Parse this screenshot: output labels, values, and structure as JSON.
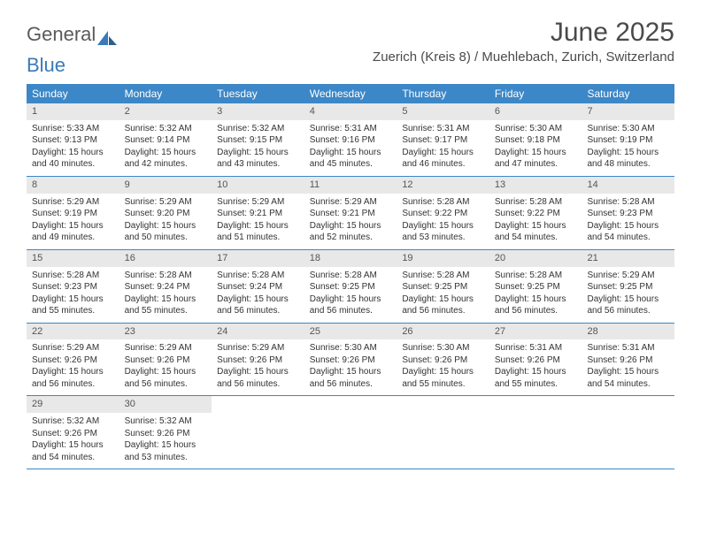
{
  "logo": {
    "text_general": "General",
    "text_blue": "Blue"
  },
  "title": "June 2025",
  "subtitle": "Zuerich (Kreis 8) / Muehlebach, Zurich, Switzerland",
  "colors": {
    "header_bg": "#3c87c7",
    "header_text": "#ffffff",
    "daynum_bg": "#e8e8e8",
    "week_border": "#3c87c7",
    "text": "#333333"
  },
  "day_names": [
    "Sunday",
    "Monday",
    "Tuesday",
    "Wednesday",
    "Thursday",
    "Friday",
    "Saturday"
  ],
  "weeks": [
    [
      {
        "n": "1",
        "sr": "5:33 AM",
        "ss": "9:13 PM",
        "dl": "15 hours and 40 minutes."
      },
      {
        "n": "2",
        "sr": "5:32 AM",
        "ss": "9:14 PM",
        "dl": "15 hours and 42 minutes."
      },
      {
        "n": "3",
        "sr": "5:32 AM",
        "ss": "9:15 PM",
        "dl": "15 hours and 43 minutes."
      },
      {
        "n": "4",
        "sr": "5:31 AM",
        "ss": "9:16 PM",
        "dl": "15 hours and 45 minutes."
      },
      {
        "n": "5",
        "sr": "5:31 AM",
        "ss": "9:17 PM",
        "dl": "15 hours and 46 minutes."
      },
      {
        "n": "6",
        "sr": "5:30 AM",
        "ss": "9:18 PM",
        "dl": "15 hours and 47 minutes."
      },
      {
        "n": "7",
        "sr": "5:30 AM",
        "ss": "9:19 PM",
        "dl": "15 hours and 48 minutes."
      }
    ],
    [
      {
        "n": "8",
        "sr": "5:29 AM",
        "ss": "9:19 PM",
        "dl": "15 hours and 49 minutes."
      },
      {
        "n": "9",
        "sr": "5:29 AM",
        "ss": "9:20 PM",
        "dl": "15 hours and 50 minutes."
      },
      {
        "n": "10",
        "sr": "5:29 AM",
        "ss": "9:21 PM",
        "dl": "15 hours and 51 minutes."
      },
      {
        "n": "11",
        "sr": "5:29 AM",
        "ss": "9:21 PM",
        "dl": "15 hours and 52 minutes."
      },
      {
        "n": "12",
        "sr": "5:28 AM",
        "ss": "9:22 PM",
        "dl": "15 hours and 53 minutes."
      },
      {
        "n": "13",
        "sr": "5:28 AM",
        "ss": "9:22 PM",
        "dl": "15 hours and 54 minutes."
      },
      {
        "n": "14",
        "sr": "5:28 AM",
        "ss": "9:23 PM",
        "dl": "15 hours and 54 minutes."
      }
    ],
    [
      {
        "n": "15",
        "sr": "5:28 AM",
        "ss": "9:23 PM",
        "dl": "15 hours and 55 minutes."
      },
      {
        "n": "16",
        "sr": "5:28 AM",
        "ss": "9:24 PM",
        "dl": "15 hours and 55 minutes."
      },
      {
        "n": "17",
        "sr": "5:28 AM",
        "ss": "9:24 PM",
        "dl": "15 hours and 56 minutes."
      },
      {
        "n": "18",
        "sr": "5:28 AM",
        "ss": "9:25 PM",
        "dl": "15 hours and 56 minutes."
      },
      {
        "n": "19",
        "sr": "5:28 AM",
        "ss": "9:25 PM",
        "dl": "15 hours and 56 minutes."
      },
      {
        "n": "20",
        "sr": "5:28 AM",
        "ss": "9:25 PM",
        "dl": "15 hours and 56 minutes."
      },
      {
        "n": "21",
        "sr": "5:29 AM",
        "ss": "9:25 PM",
        "dl": "15 hours and 56 minutes."
      }
    ],
    [
      {
        "n": "22",
        "sr": "5:29 AM",
        "ss": "9:26 PM",
        "dl": "15 hours and 56 minutes."
      },
      {
        "n": "23",
        "sr": "5:29 AM",
        "ss": "9:26 PM",
        "dl": "15 hours and 56 minutes."
      },
      {
        "n": "24",
        "sr": "5:29 AM",
        "ss": "9:26 PM",
        "dl": "15 hours and 56 minutes."
      },
      {
        "n": "25",
        "sr": "5:30 AM",
        "ss": "9:26 PM",
        "dl": "15 hours and 56 minutes."
      },
      {
        "n": "26",
        "sr": "5:30 AM",
        "ss": "9:26 PM",
        "dl": "15 hours and 55 minutes."
      },
      {
        "n": "27",
        "sr": "5:31 AM",
        "ss": "9:26 PM",
        "dl": "15 hours and 55 minutes."
      },
      {
        "n": "28",
        "sr": "5:31 AM",
        "ss": "9:26 PM",
        "dl": "15 hours and 54 minutes."
      }
    ],
    [
      {
        "n": "29",
        "sr": "5:32 AM",
        "ss": "9:26 PM",
        "dl": "15 hours and 54 minutes."
      },
      {
        "n": "30",
        "sr": "5:32 AM",
        "ss": "9:26 PM",
        "dl": "15 hours and 53 minutes."
      },
      null,
      null,
      null,
      null,
      null
    ]
  ],
  "labels": {
    "sunrise": "Sunrise: ",
    "sunset": "Sunset: ",
    "daylight": "Daylight: "
  }
}
